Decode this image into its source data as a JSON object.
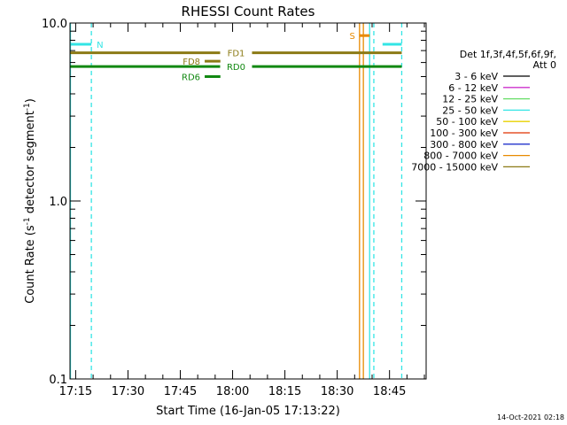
{
  "chart_data": {
    "type": "line",
    "title": "RHESSI Count Rates",
    "xlabel": "Start Time (16-Jan-05 17:13:22)",
    "ylabel_main": "Count Rate (s",
    "ylabel_sup1": "-1",
    "ylabel_mid": " detector segment",
    "ylabel_sup2": "-1",
    "ylabel_end": ")",
    "footer": "14-Oct-2021 02:18",
    "x_unit": "minutes",
    "xlim": [
      1033.37,
      1135.5
    ],
    "ylim": [
      0.1,
      10.0
    ],
    "y_scale": "log",
    "x_ticks": [
      {
        "value": 1035,
        "label": "17:15"
      },
      {
        "value": 1050,
        "label": "17:30"
      },
      {
        "value": 1065,
        "label": "17:45"
      },
      {
        "value": 1080,
        "label": "18:00"
      },
      {
        "value": 1095,
        "label": "18:15"
      },
      {
        "value": 1110,
        "label": "18:30"
      },
      {
        "value": 1125,
        "label": "18:45"
      }
    ],
    "x_minor_step": 5,
    "y_ticks": [
      {
        "value": 0.1,
        "label": "0.1"
      },
      {
        "value": 1.0,
        "label": "1.0"
      },
      {
        "value": 10.0,
        "label": "10.0"
      }
    ],
    "legend": {
      "header": [
        "Det 1f,3f,4f,5f,6f,9f,",
        "Att 0"
      ],
      "entries": [
        {
          "label": "3 - 6 keV",
          "color": "#000000"
        },
        {
          "label": "6 - 12 keV",
          "color": "#cc33cc"
        },
        {
          "label": "12 - 25 keV",
          "color": "#66dd66"
        },
        {
          "label": "25 - 50 keV",
          "color": "#33e5e5"
        },
        {
          "label": "50 - 100 keV",
          "color": "#e8d200"
        },
        {
          "label": "100 - 300 keV",
          "color": "#e03000"
        },
        {
          "label": "300 - 800 keV",
          "color": "#2233cc"
        },
        {
          "label": "800 - 7000 keV",
          "color": "#e88a00"
        },
        {
          "label": "7000 - 15000 keV",
          "color": "#8b7a15"
        }
      ]
    },
    "flag_bars": [
      {
        "label": "N",
        "x_start": 1033.5,
        "x_end": 1039.5,
        "y": 7.6,
        "color": "#33e5e5",
        "label_side": "right"
      },
      {
        "label": "FD1",
        "x_start": 1033.5,
        "x_end": 1128.5,
        "y": 6.8,
        "color": "#8b7a15",
        "label_side": "center"
      },
      {
        "label": "FD8",
        "x_start": 1072.0,
        "x_end": 1076.5,
        "y": 6.1,
        "color": "#8b7a15",
        "label_side": "left"
      },
      {
        "label": "RD0",
        "x_start": 1033.5,
        "x_end": 1128.5,
        "y": 5.7,
        "color": "#118811",
        "label_side": "center"
      },
      {
        "label": "RD6",
        "x_start": 1072.0,
        "x_end": 1076.5,
        "y": 5.0,
        "color": "#118811",
        "label_side": "left"
      },
      {
        "label": "S",
        "x_start": 1116.4,
        "x_end": 1119.3,
        "y": 8.5,
        "color": "#e88a00",
        "label_side": "left"
      },
      {
        "label": "",
        "x_start": 1123.0,
        "x_end": 1128.5,
        "y": 7.6,
        "color": "#33e5e5",
        "label_side": "none"
      }
    ],
    "vertical_lines": [
      {
        "x": 1033.5,
        "color": "#33e5e5",
        "style": "solid"
      },
      {
        "x": 1039.5,
        "color": "#33e5e5",
        "style": "dashed"
      },
      {
        "x": 1116.4,
        "color": "#e88a00",
        "style": "solid"
      },
      {
        "x": 1117.5,
        "color": "#e88a00",
        "style": "solid"
      },
      {
        "x": 1119.3,
        "color": "#33e5e5",
        "style": "solid"
      },
      {
        "x": 1120.5,
        "color": "#33e5e5",
        "style": "dashed"
      },
      {
        "x": 1128.5,
        "color": "#33e5e5",
        "style": "dashed"
      }
    ]
  }
}
